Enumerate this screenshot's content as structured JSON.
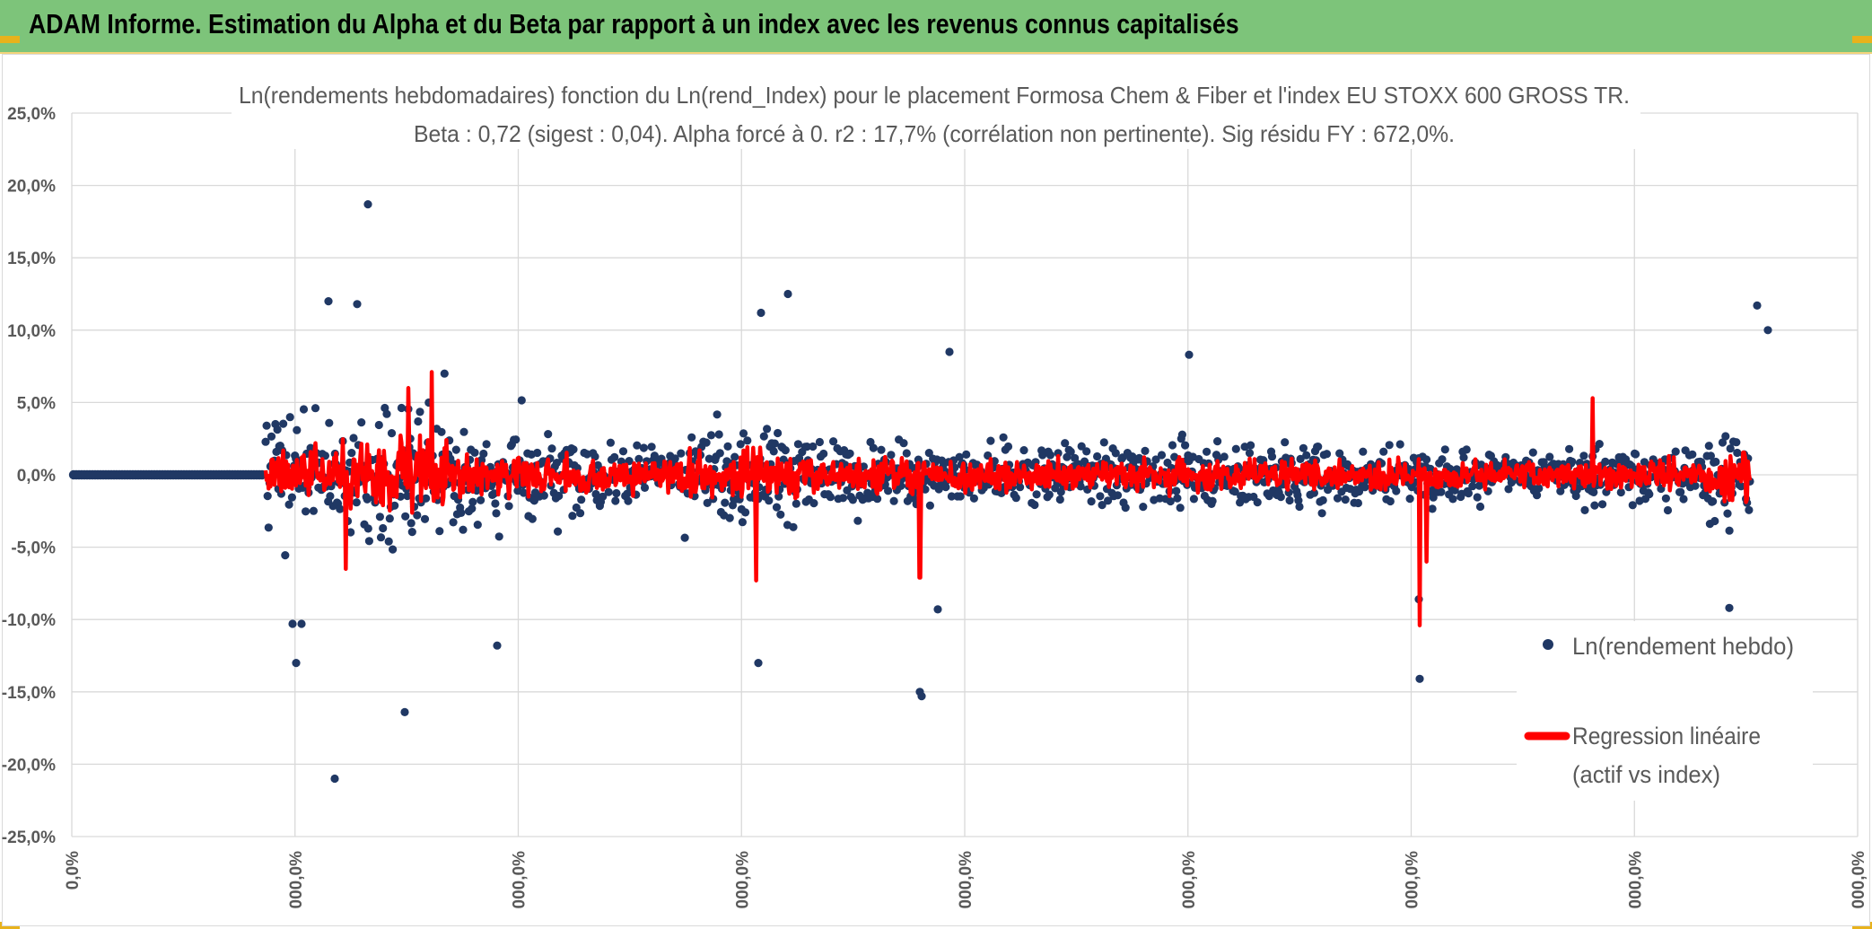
{
  "banner": {
    "title": "ADAM Informe. Estimation du Alpha et du Beta par rapport à un index avec les revenus connus capitalisés",
    "background": "#7dc47a"
  },
  "chart_data": {
    "type": "scatter",
    "title": [
      "Ln(rendements hebdomadaires) fonction du Ln(rend_Index) pour le placement Formosa Chem & Fiber  et l'index EU STOXX 600 GROSS TR.",
      "Beta : 0,72 (sigest : 0,04). Alpha forcé à 0. r2 : 17,7% (corrélation non pertinente). Sig résidu FY : 672,0%."
    ],
    "xlabel": "",
    "ylabel": "",
    "ylim": [
      -25,
      25
    ],
    "y_ticks": [
      "25,0%",
      "20,0%",
      "15,0%",
      "10,0%",
      "5,0%",
      "0,0%",
      "-5,0%",
      "-10,0%",
      "-15,0%",
      "-20,0%",
      "-25,0%"
    ],
    "x_ticks": [
      "0,0%",
      "000,0%",
      "000,0%",
      "000,0%",
      "000,0%",
      "000,0%",
      "000,0%",
      "000,0%",
      "000,0%"
    ],
    "grid": true,
    "legend_position": "right",
    "series": [
      {
        "name": "Ln(rendement hebdo)",
        "kind": "scatter",
        "color": "#203864",
        "notable_points_pct": [
          18.7,
          12.0,
          11.8,
          11.2,
          12.5,
          11.7,
          10.0,
          8.5,
          8.3,
          -10.3,
          -13.0,
          -16.4,
          -21.0,
          -11.8,
          -10.3,
          -13.0,
          -15.0,
          -15.3,
          -9.3,
          -8.6,
          -14.1,
          -9.2
        ]
      },
      {
        "name": "Regression linéaire",
        "name_line2": "(actif vs index)",
        "kind": "line",
        "color": "#ff0000",
        "beta": 0.72,
        "alpha": 0,
        "extreme_values_pct": [
          7.1,
          6.0,
          -6.5,
          -7.3,
          -7.1,
          5.3,
          -10.4,
          -6.0
        ]
      }
    ]
  },
  "colors": {
    "markers": "#203864",
    "regression": "#ff0000",
    "gridline": "#d9d9d9",
    "axis_text": "#595959",
    "corner_accent": "#e8b21c"
  }
}
